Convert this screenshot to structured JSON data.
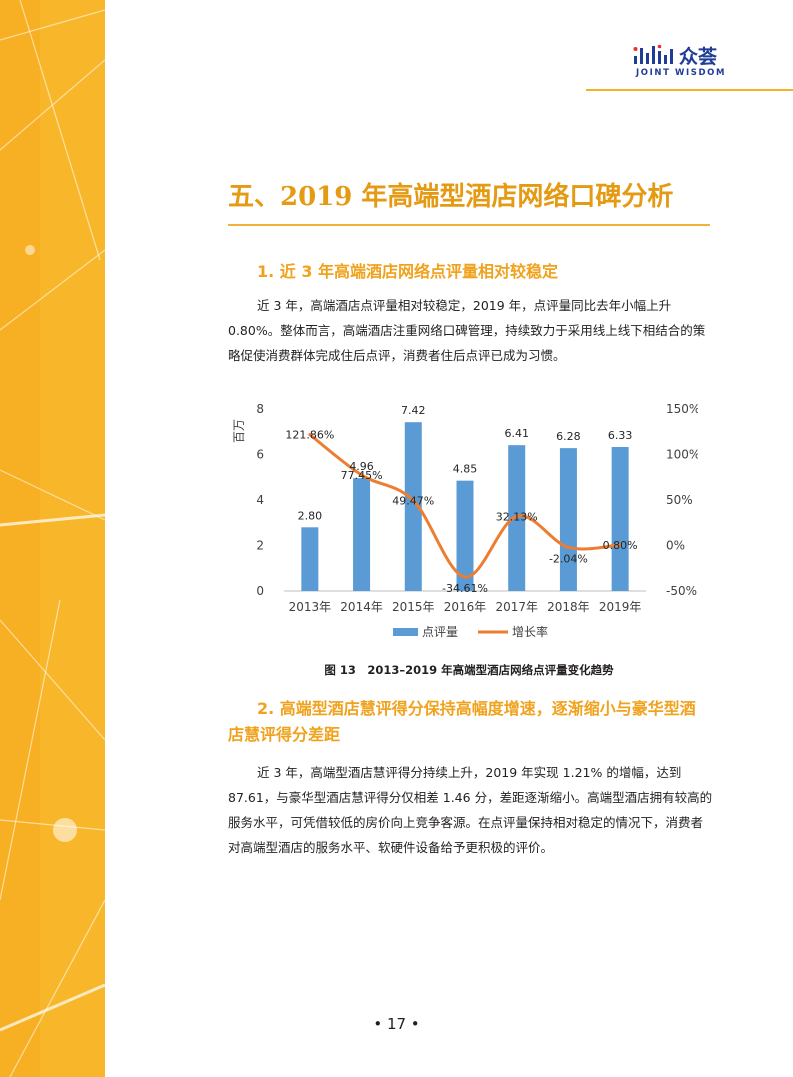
{
  "header": {
    "logo_cn": "众荟",
    "logo_en": "JOINT WISDOM",
    "logo_bar_color": "#1f3c97",
    "logo_accent_color": "#e6332a"
  },
  "section": {
    "title": "五、2019 年高端型酒店网络口碑分析",
    "subsection1": "1. 近 3 年高端酒店网络点评量相对较稳定",
    "paragraph1": "近 3 年，高端酒店点评量相对较稳定，2019 年，点评量同比去年小幅上升 0.80%。整体而言，高端酒店注重网络口碑管理，持续致力于采用线上线下相结合的策略促使消费群体完成住后点评，消费者住后点评已成为习惯。",
    "caption": "图 13　2013–2019 年高端型酒店网络点评量变化趋势",
    "subsection2": "2. 高端型酒店慧评得分保持高幅度增速，逐渐缩小与豪华型酒店慧评得分差距",
    "paragraph2": "近 3 年，高端型酒店慧评得分持续上升，2019 年实现 1.21% 的增幅，达到 87.61，与豪华型酒店慧评得分仅相差 1.46 分，差距逐渐缩小。高端型酒店拥有较高的服务水平，可凭借较低的房价向上竞争客源。在点评量保持相对稳定的情况下，消费者对高端型酒店的服务水平、软硬件设备给予更积极的评价。"
  },
  "footer": {
    "page_number": "• 17 •"
  },
  "colors": {
    "accent": "#f5b324",
    "title": "#e49a12",
    "bar": "#5b9bd5",
    "line": "#ed7d31"
  },
  "chart_data": {
    "type": "bar",
    "categories": [
      "2013年",
      "2014年",
      "2015年",
      "2016年",
      "2017年",
      "2018年",
      "2019年"
    ],
    "series": [
      {
        "name": "点评量",
        "type": "bar",
        "axis": "left",
        "values": [
          2.8,
          4.96,
          7.42,
          4.85,
          6.41,
          6.28,
          6.33
        ],
        "labels": [
          "2.80",
          "4.96",
          "7.42",
          "4.85",
          "6.41",
          "6.28",
          "6.33"
        ]
      },
      {
        "name": "增长率",
        "type": "line",
        "axis": "right",
        "values": [
          121.86,
          77.45,
          49.47,
          -34.61,
          32.13,
          -2.04,
          0.8
        ],
        "labels": [
          "121.86%",
          "77.45%",
          "49.47%",
          "-34.61%",
          "32.13%",
          "-2.04%",
          "0.80%"
        ]
      }
    ],
    "ylabel": "百万",
    "ylim": [
      0,
      8
    ],
    "yticks": [
      "0",
      "2",
      "4",
      "6",
      "8"
    ],
    "y2lim": [
      -50,
      150
    ],
    "y2ticks": [
      "-50%",
      "0%",
      "50%",
      "100%",
      "150%"
    ],
    "legend": "bottom",
    "grid": false
  }
}
